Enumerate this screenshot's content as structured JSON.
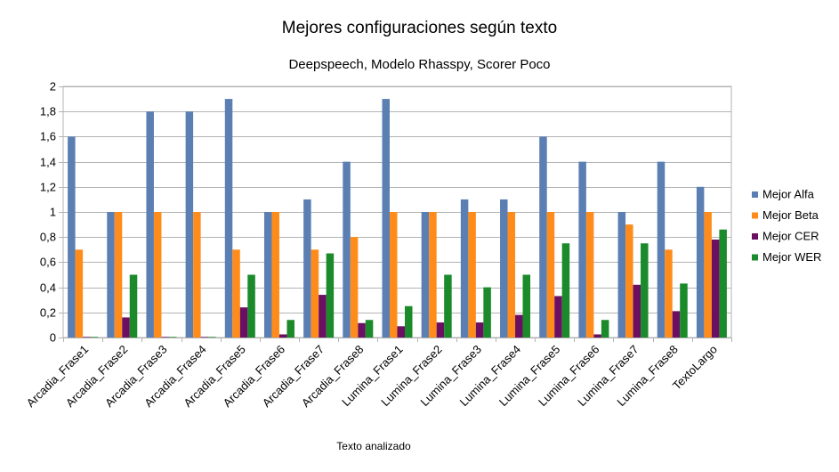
{
  "chart_data": {
    "type": "bar",
    "title": "Mejores configuraciones según texto",
    "subtitle": "Deepspeech, Modelo Rhasspy, Scorer Poco",
    "xlabel": "Texto analizado",
    "ylabel": "",
    "ylim": [
      0,
      2
    ],
    "yticks": [
      "0",
      "0,2",
      "0,4",
      "0,6",
      "0,8",
      "1",
      "1,2",
      "1,4",
      "1,6",
      "1,8",
      "2"
    ],
    "grid": true,
    "legend_position": "right",
    "categories": [
      "Arcadia_Frase1",
      "Arcadia_Frase2",
      "Arcadia_Frase3",
      "Arcadia_Frase4",
      "Arcadia_Frase5",
      "Arcadia_Frase6",
      "Arcadia_Frase7",
      "Arcadia_Frase8",
      "Lumina_Frase1",
      "Lumina_Frase2",
      "Lumina_Frase3",
      "Lumina_Frase4",
      "Lumina_Frase5",
      "Lumina_Frase6",
      "Lumina_Frase7",
      "Lumina_Frase8",
      "TextoLargo"
    ],
    "series": [
      {
        "name": "Mejor Alfa",
        "color": "#5b7fb3",
        "values": [
          1.6,
          1.0,
          1.8,
          1.8,
          1.9,
          1.0,
          1.1,
          1.4,
          1.9,
          1.0,
          1.1,
          1.1,
          1.6,
          1.4,
          1.0,
          1.4,
          1.2
        ]
      },
      {
        "name": "Mejor Beta",
        "color": "#ff8c1a",
        "values": [
          0.7,
          1.0,
          1.0,
          1.0,
          0.7,
          1.0,
          0.7,
          0.8,
          1.0,
          1.0,
          1.0,
          1.0,
          1.0,
          1.0,
          0.9,
          0.7,
          1.0
        ]
      },
      {
        "name": "Mejor CER",
        "color": "#6b0f63",
        "values": [
          0.005,
          0.16,
          0.005,
          0.005,
          0.24,
          0.025,
          0.34,
          0.115,
          0.09,
          0.12,
          0.12,
          0.18,
          0.33,
          0.025,
          0.42,
          0.21,
          0.78
        ]
      },
      {
        "name": "Mejor WER",
        "color": "#1a8a2a",
        "values": [
          0.005,
          0.5,
          0.005,
          0.005,
          0.5,
          0.14,
          0.67,
          0.14,
          0.25,
          0.5,
          0.4,
          0.5,
          0.75,
          0.14,
          0.75,
          0.43,
          0.86
        ]
      }
    ]
  }
}
